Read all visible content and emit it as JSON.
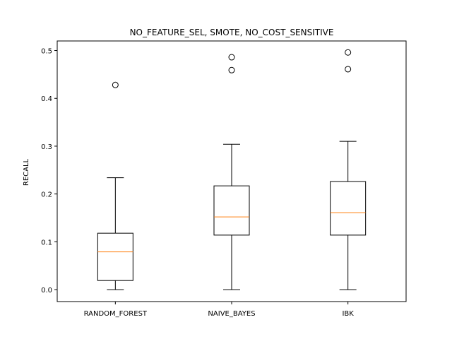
{
  "chart_data": {
    "type": "boxplot",
    "title": "NO_FEATURE_SEL, SMOTE, NO_COST_SENSITIVE",
    "xlabel": "",
    "ylabel": "RECALL",
    "ylim": [
      -0.025,
      0.52
    ],
    "yticks": [
      0.0,
      0.1,
      0.2,
      0.3,
      0.4,
      0.5
    ],
    "ytick_labels": [
      "0.0",
      "0.1",
      "0.2",
      "0.3",
      "0.4",
      "0.5"
    ],
    "categories": [
      "RANDOM_FOREST",
      "NAIVE_BAYES",
      "IBK"
    ],
    "boxes": [
      {
        "category": "RANDOM_FOREST",
        "whisker_low": 0.0,
        "q1": 0.019,
        "median": 0.079,
        "q3": 0.118,
        "whisker_high": 0.234,
        "outliers": [
          0.428
        ]
      },
      {
        "category": "NAIVE_BAYES",
        "whisker_low": 0.0,
        "q1": 0.114,
        "median": 0.152,
        "q3": 0.217,
        "whisker_high": 0.304,
        "outliers": [
          0.459,
          0.486
        ]
      },
      {
        "category": "IBK",
        "whisker_low": 0.0,
        "q1": 0.114,
        "median": 0.161,
        "q3": 0.226,
        "whisker_high": 0.31,
        "outliers": [
          0.461,
          0.496
        ]
      }
    ],
    "grid": false,
    "colors": {
      "box": "#000000",
      "median": "#ff7f0e",
      "outlier": "#000000"
    }
  }
}
